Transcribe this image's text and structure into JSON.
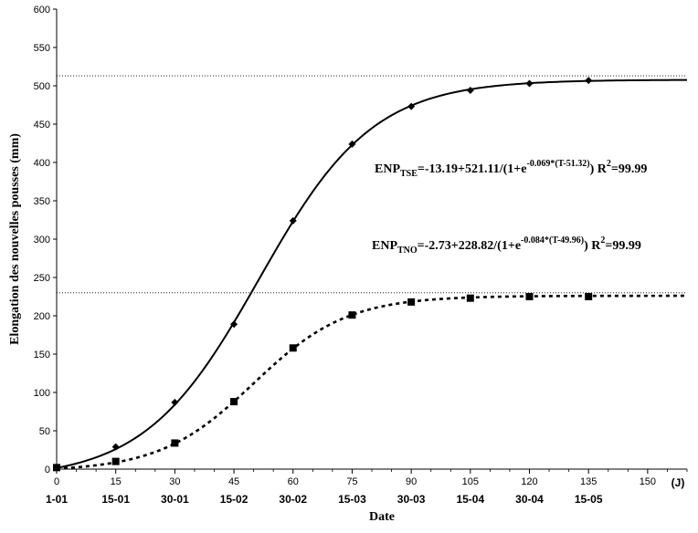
{
  "chart_data": {
    "type": "line",
    "ylabel": "Elongation des nouvelles pousses (mm)",
    "xlabel": "Date",
    "xunit": "(J)",
    "xlim": [
      0,
      160
    ],
    "ylim": [
      0,
      600
    ],
    "yticks": [
      0,
      50,
      100,
      150,
      200,
      250,
      300,
      350,
      400,
      450,
      500,
      550,
      600
    ],
    "xticks": [
      0,
      15,
      30,
      45,
      60,
      75,
      90,
      105,
      120,
      135,
      150
    ],
    "x_date_labels": [
      "1-01",
      "15-01",
      "30-01",
      "15-02",
      "30-02",
      "15-03",
      "30-03",
      "15-04",
      "30-04",
      "15-05"
    ],
    "reference_lines": [
      513,
      230
    ],
    "series": [
      {
        "style": "solid",
        "marker": "diamond",
        "model": {
          "a": -13.19,
          "b": 521.11,
          "k": 0.069,
          "t0": 51.32
        },
        "points": [
          [
            0,
            2
          ],
          [
            15,
            29
          ],
          [
            30,
            87
          ],
          [
            45,
            189
          ],
          [
            60,
            324
          ],
          [
            75,
            424
          ],
          [
            90,
            473
          ],
          [
            105,
            494
          ],
          [
            120,
            503
          ],
          [
            135,
            507
          ]
        ]
      },
      {
        "style": "dotted",
        "marker": "square",
        "model": {
          "a": -2.73,
          "b": 228.82,
          "k": 0.084,
          "t0": 49.96
        },
        "points": [
          [
            0,
            2
          ],
          [
            15,
            10
          ],
          [
            30,
            34
          ],
          [
            45,
            88
          ],
          [
            60,
            158
          ],
          [
            75,
            201
          ],
          [
            90,
            218
          ],
          [
            105,
            223
          ],
          [
            120,
            225
          ],
          [
            135,
            225
          ]
        ]
      }
    ],
    "annotations": {
      "tse": {
        "prefix": "ENP",
        "sub": "TSE",
        "main": "=-13.19+521.11/(1+e",
        "exp": "-0.069*(T-51.32)",
        "tail": ") R",
        "r2sup": "2",
        "r2val": "=99.99"
      },
      "tno": {
        "prefix": "ENP",
        "sub": "TNO",
        "main": "=-2.73+228.82/(1+e",
        "exp": "-0.084*(T-49.96)",
        "tail": ") R",
        "r2sup": "2",
        "r2val": "=99.99"
      }
    }
  }
}
